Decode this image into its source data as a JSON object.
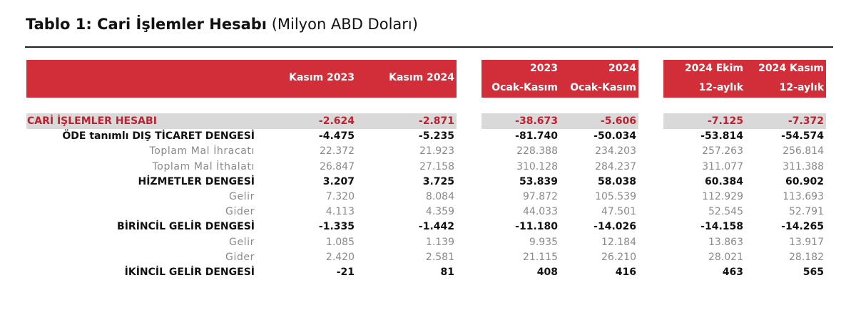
{
  "title": {
    "bold": "Tablo 1: Cari İşlemler Hesabı",
    "normal": "(Milyon ABD Doları)"
  },
  "table": {
    "headers": [
      [
        "Kasım 2023"
      ],
      [
        "Kasım 2024"
      ],
      [
        "2023",
        "Ocak-Kasım"
      ],
      [
        "2024",
        "Ocak-Kasım"
      ],
      [
        "2024 Ekim",
        "12-aylık"
      ],
      [
        "2024 Kasım",
        "12-aylık"
      ]
    ],
    "rows": [
      {
        "label": "CARİ İŞLEMLER HESABI",
        "values": [
          "-2.624",
          "-2.871",
          "-38.673",
          "-5.606",
          "-7.125",
          "-7.372"
        ]
      },
      {
        "label": "ÖDE tanımlı DIŞ TİCARET DENGESİ",
        "values": [
          "-4.475",
          "-5.235",
          "-81.740",
          "-50.034",
          "-53.814",
          "-54.574"
        ]
      },
      {
        "label": "Toplam Mal İhracatı",
        "values": [
          "22.372",
          "21.923",
          "228.388",
          "234.203",
          "257.263",
          "256.814"
        ]
      },
      {
        "label": "Toplam Mal İthalatı",
        "values": [
          "26.847",
          "27.158",
          "310.128",
          "284.237",
          "311.077",
          "311.388"
        ]
      },
      {
        "label": "HİZMETLER DENGESİ",
        "values": [
          "3.207",
          "3.725",
          "53.839",
          "58.038",
          "60.384",
          "60.902"
        ]
      },
      {
        "label": "Gelir",
        "values": [
          "7.320",
          "8.084",
          "97.872",
          "105.539",
          "112.929",
          "113.693"
        ]
      },
      {
        "label": "Gider",
        "values": [
          "4.113",
          "4.359",
          "44.033",
          "47.501",
          "52.545",
          "52.791"
        ]
      },
      {
        "label": "BİRİNCİL GELİR DENGESİ",
        "values": [
          "-1.335",
          "-1.442",
          "-11.180",
          "-14.026",
          "-14.158",
          "-14.265"
        ]
      },
      {
        "label": "Gelir",
        "values": [
          "1.085",
          "1.139",
          "9.935",
          "12.184",
          "13.863",
          "13.917"
        ]
      },
      {
        "label": "Gider",
        "values": [
          "2.420",
          "2.581",
          "21.115",
          "26.210",
          "28.021",
          "28.182"
        ]
      },
      {
        "label": "İKİNCİL GELİR DENGESİ",
        "values": [
          "-21",
          "81",
          "408",
          "416",
          "463",
          "565"
        ]
      }
    ]
  }
}
